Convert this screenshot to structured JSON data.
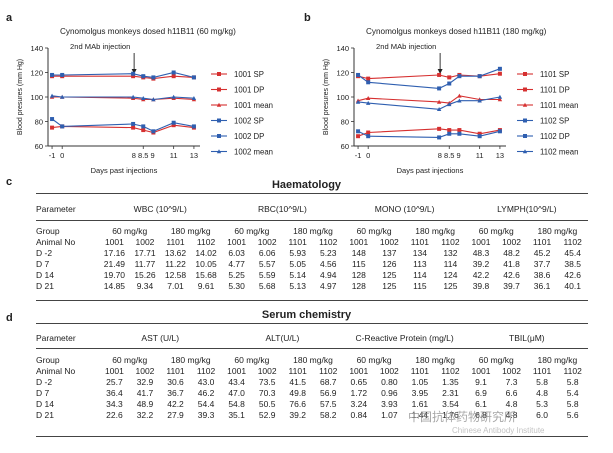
{
  "panel_labels": {
    "a": "a",
    "b": "b",
    "c": "c",
    "d": "d"
  },
  "colors": {
    "sp": "#d63030",
    "dp": "#d63030",
    "mean": "#d63030",
    "sp2": "#2f5fb0",
    "dp2": "#2f5fb0",
    "mean2": "#2f5fb0",
    "axis": "#333333"
  },
  "chart_data": [
    {
      "type": "line",
      "title": "Cynomolgus monkeys dosed h11B11 (60 mg/kg)",
      "annotation": "2nd MAb injection",
      "xlabel": "Days past injections",
      "ylabel": "Blood presures (mm Hg)",
      "ylim": [
        60,
        140
      ],
      "yticks": [
        60,
        80,
        100,
        120,
        140
      ],
      "x": [
        -1,
        0,
        7,
        8,
        9,
        11,
        13
      ],
      "xticks": [
        "-1",
        "0",
        "8 8.5 9",
        "11",
        "13"
      ],
      "series": [
        {
          "name": "1001 SP",
          "color": "#d63030",
          "marker": "square",
          "values": [
            117,
            117,
            117,
            116,
            115,
            117,
            116
          ]
        },
        {
          "name": "1001 DP",
          "color": "#d63030",
          "marker": "square",
          "values": [
            75,
            76,
            75,
            73,
            71,
            77,
            75
          ]
        },
        {
          "name": "1001 mean",
          "color": "#d63030",
          "marker": "triangle",
          "values": [
            100,
            100,
            99,
            98,
            98,
            99,
            98
          ]
        },
        {
          "name": "1002 SP",
          "color": "#2f5fb0",
          "marker": "square",
          "values": [
            118,
            118,
            119,
            117,
            116,
            120,
            116
          ]
        },
        {
          "name": "1002 DP",
          "color": "#2f5fb0",
          "marker": "square",
          "values": [
            82,
            76,
            78,
            76,
            72,
            79,
            76
          ]
        },
        {
          "name": "1002 mean",
          "color": "#2f5fb0",
          "marker": "triangle",
          "values": [
            101,
            100,
            100,
            99,
            98,
            100,
            99
          ]
        }
      ]
    },
    {
      "type": "line",
      "title": "Cynomolgus monkeys dosed h11B11 (180 mg/kg)",
      "annotation": "2nd MAb injection",
      "xlabel": "Days past injections",
      "ylabel": "Blood presures (mm Hg)",
      "ylim": [
        60,
        140
      ],
      "yticks": [
        60,
        80,
        100,
        120,
        140
      ],
      "x": [
        -1,
        0,
        7,
        8,
        9,
        11,
        13
      ],
      "xticks": [
        "-1",
        "0",
        "8 8.5 9",
        "11",
        "13"
      ],
      "series": [
        {
          "name": "1101 SP",
          "color": "#d63030",
          "marker": "square",
          "values": [
            117,
            115,
            118,
            116,
            118,
            117,
            119
          ]
        },
        {
          "name": "1101 DP",
          "color": "#d63030",
          "marker": "square",
          "values": [
            68,
            71,
            74,
            73,
            73,
            70,
            73
          ]
        },
        {
          "name": "1101 mean",
          "color": "#d63030",
          "marker": "triangle",
          "values": [
            97,
            99,
            96,
            95,
            101,
            98,
            98
          ]
        },
        {
          "name": "1102 SP",
          "color": "#2f5fb0",
          "marker": "square",
          "values": [
            118,
            112,
            107,
            111,
            117,
            117,
            123
          ]
        },
        {
          "name": "1102 DP",
          "color": "#2f5fb0",
          "marker": "square",
          "values": [
            72,
            68,
            67,
            70,
            70,
            68,
            72
          ]
        },
        {
          "name": "1102 mean",
          "color": "#2f5fb0",
          "marker": "triangle",
          "values": [
            96,
            95,
            90,
            94,
            97,
            97,
            100
          ]
        }
      ]
    },
    {
      "type": "table",
      "title": "Haematology",
      "header": [
        "Parameter",
        "WBC (10^9/L)",
        "RBC(10^9/L)",
        "MONO (10^9/L)",
        "LYMPH(10^9/L)"
      ],
      "rows": [
        [
          "Group",
          "60 mg/kg",
          "180 mg/kg",
          "60 mg/kg",
          "180 mg/kg",
          "60 mg/kg",
          "180 mg/kg",
          "60 mg/kg",
          "180 mg/kg"
        ],
        [
          "Animal No",
          "1001",
          "1002",
          "1101",
          "1102",
          "1001",
          "1002",
          "1101",
          "1102",
          "1001",
          "1002",
          "1101",
          "1102",
          "1001",
          "1002",
          "1101",
          "1102"
        ],
        [
          "D -2",
          "17.16",
          "17.71",
          "13.62",
          "14.02",
          "6.03",
          "6.06",
          "5.93",
          "5.23",
          "148",
          "137",
          "134",
          "132",
          "48.3",
          "48.2",
          "45.2",
          "45.4"
        ],
        [
          "D 7",
          "21.49",
          "11.77",
          "11.22",
          "10.05",
          "4.77",
          "5.57",
          "5.05",
          "4.56",
          "115",
          "126",
          "113",
          "114",
          "39.2",
          "41.8",
          "37.7",
          "38.5"
        ],
        [
          "D 14",
          "19.70",
          "15.26",
          "12.58",
          "15.68",
          "5.25",
          "5.59",
          "5.14",
          "4.94",
          "128",
          "125",
          "114",
          "124",
          "42.2",
          "42.6",
          "38.6",
          "42.6"
        ],
        [
          "D 21",
          "14.85",
          "9.34",
          "7.01",
          "9.61",
          "5.30",
          "5.68",
          "5.13",
          "4.97",
          "128",
          "125",
          "115",
          "125",
          "39.8",
          "39.7",
          "36.1",
          "40.1"
        ]
      ]
    },
    {
      "type": "table",
      "title": "Serum chemistry",
      "header": [
        "Parameter",
        "AST (U/L)",
        "ALT(U/L)",
        "C-Reactive Protein (mg/L)",
        "TBIL(μM)"
      ],
      "rows": [
        [
          "Group",
          "60 mg/kg",
          "180 mg/kg",
          "60 mg/kg",
          "180 mg/kg",
          "60 mg/kg",
          "180 mg/kg",
          "60 mg/kg",
          "180 mg/kg"
        ],
        [
          "Animal No",
          "1001",
          "1002",
          "1101",
          "1102",
          "1001",
          "1002",
          "1101",
          "1102",
          "1001",
          "1002",
          "1101",
          "1102",
          "1001",
          "1002",
          "1101",
          "1102"
        ],
        [
          "D -2",
          "25.7",
          "32.9",
          "30.6",
          "43.0",
          "43.4",
          "73.5",
          "41.5",
          "68.7",
          "0.65",
          "0.80",
          "1.05",
          "1.35",
          "9.1",
          "7.3",
          "5.8",
          "5.8"
        ],
        [
          "D 7",
          "36.4",
          "41.7",
          "36.7",
          "46.2",
          "47.0",
          "70.3",
          "49.8",
          "56.9",
          "1.72",
          "0.96",
          "3.95",
          "2.31",
          "6.9",
          "6.6",
          "4.8",
          "5.4"
        ],
        [
          "D 14",
          "34.3",
          "48.9",
          "42.2",
          "54.4",
          "54.8",
          "50.5",
          "76.6",
          "57.5",
          "3.24",
          "3.93",
          "1.61",
          "3.54",
          "6.1",
          "4.8",
          "5.3",
          "5.8"
        ],
        [
          "D 21",
          "22.6",
          "32.2",
          "27.9",
          "39.3",
          "35.1",
          "52.9",
          "39.2",
          "58.2",
          "0.84",
          "1.07",
          "1.44",
          "1.76",
          "6.8",
          "4.8",
          "6.0",
          "5.6"
        ]
      ]
    }
  ],
  "watermark": "中国抗体药物研究所",
  "watermark_sub": "Chinese Antibody Institute"
}
